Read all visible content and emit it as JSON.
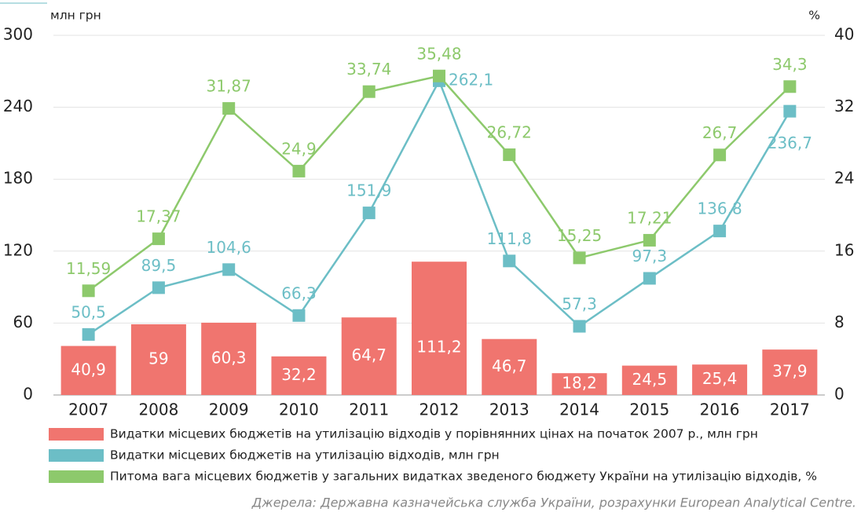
{
  "chart_data": {
    "type": "combo",
    "y_label": "млн грн",
    "y2_label": "%",
    "categories": [
      "2007",
      "2008",
      "2009",
      "2010",
      "2011",
      "2012",
      "2013",
      "2014",
      "2015",
      "2016",
      "2017"
    ],
    "series": [
      {
        "name": "Видатки місцевих бюджетів на утилізацію відходів у порівнянних цінах на початок 2007 р., млн грн",
        "type": "bar",
        "color": "#f0756f",
        "values": [
          40.9,
          59,
          60.3,
          32.2,
          64.7,
          111.2,
          46.7,
          18.2,
          24.5,
          25.4,
          37.9
        ],
        "value_labels": [
          "40,9",
          "59",
          "60,3",
          "32,2",
          "64,7",
          "111,2",
          "46,7",
          "18,2",
          "24,5",
          "25,4",
          "37,9"
        ]
      },
      {
        "name": "Видатки місцевих бюджетів на утилізацію відходів, млн грн",
        "type": "line",
        "color": "#6cbec6",
        "values": [
          50.5,
          89.5,
          104.6,
          66.3,
          151.9,
          262.1,
          111.8,
          57.3,
          97.3,
          136.8,
          236.7
        ],
        "value_labels": [
          "50,5",
          "89,5",
          "104,6",
          "66,3",
          "151,9",
          "262,1",
          "111,8",
          "57,3",
          "97,3",
          "136,8",
          "236,7"
        ]
      },
      {
        "name": "Питома вага місцевих бюджетів у загальних видатках зведеного бюджету України на утилізацію відходів, %",
        "type": "line",
        "axis": "y2",
        "color": "#8dc96c",
        "values": [
          11.59,
          17.37,
          31.87,
          24.9,
          33.74,
          35.48,
          26.72,
          15.25,
          17.21,
          26.7,
          34.3
        ],
        "value_labels": [
          "11,59",
          "17,37",
          "31,87",
          "24,9",
          "33,74",
          "35,48",
          "26,72",
          "15,25",
          "17,21",
          "26,7",
          "34,3"
        ]
      }
    ],
    "ylim": [
      0,
      300
    ],
    "yticks": [
      0,
      60,
      120,
      180,
      240,
      300
    ],
    "y2lim": [
      0,
      40
    ],
    "y2ticks": [
      0,
      8,
      16,
      24,
      32,
      40
    ],
    "grid": true,
    "source": "Джерела: Державна казначейська служба України, розрахунки European Analytical Centre."
  }
}
